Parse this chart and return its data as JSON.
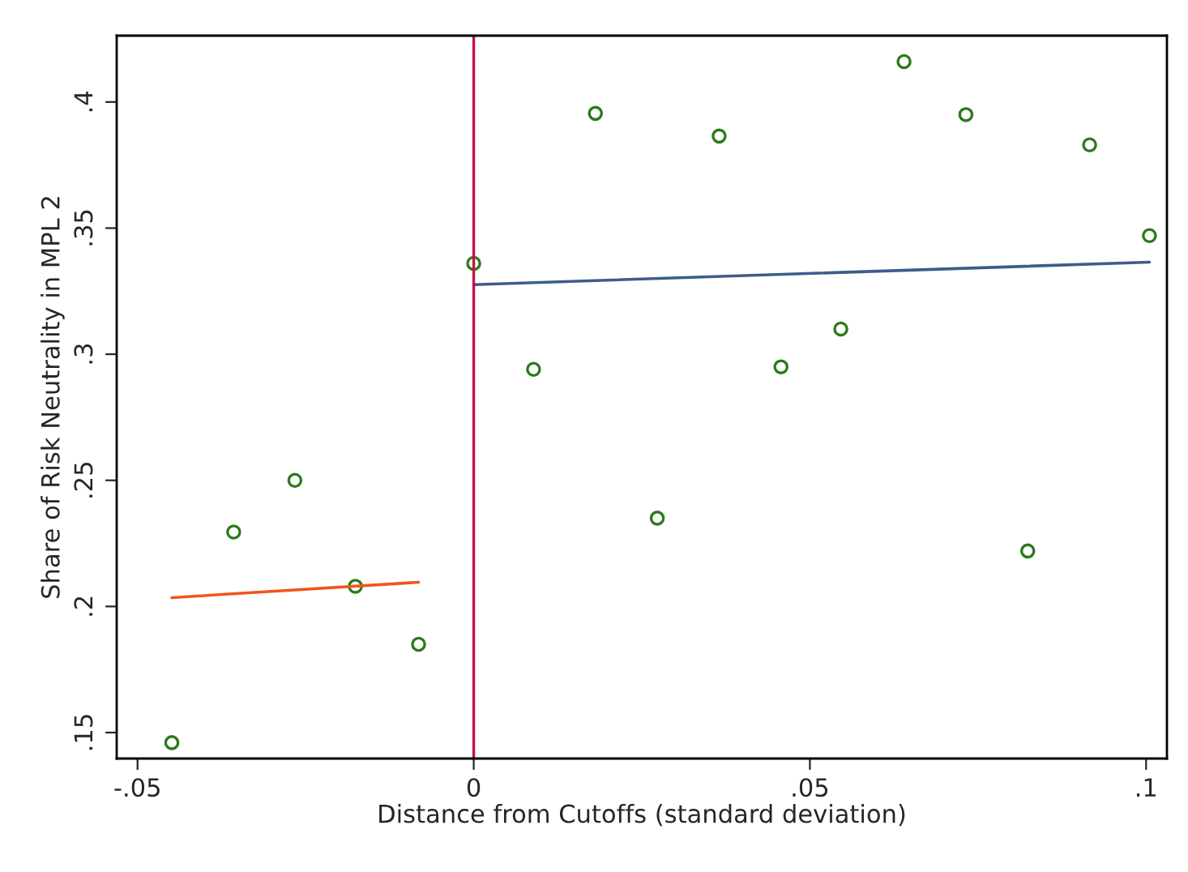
{
  "chart_data": {
    "type": "scatter",
    "xlabel": "Distance from Cutoffs (standard deviation)",
    "ylabel": "Share of Risk Neutrality in MPL 2",
    "series": [
      {
        "marker": "circle",
        "color": "#2a7a1a",
        "x": [
          -0.0449,
          -0.0357,
          -0.0266,
          -0.0176,
          -0.0082,
          0.0,
          0.0089,
          0.0181,
          0.0273,
          0.0365,
          0.0457,
          0.0546,
          0.064,
          0.0732,
          0.0824,
          0.0916,
          0.1005
        ],
        "values": [
          0.146,
          0.2295,
          0.25,
          0.208,
          0.185,
          0.336,
          0.294,
          0.3955,
          0.235,
          0.3865,
          0.295,
          0.31,
          0.416,
          0.395,
          0.222,
          0.383,
          0.347
        ]
      },
      {
        "type": "line",
        "color": "#f0561e",
        "x": [
          -0.0449,
          -0.0082
        ],
        "values": [
          0.2035,
          0.2096
        ]
      },
      {
        "type": "line",
        "color": "#3d5d8a",
        "x": [
          0.0,
          0.1005
        ],
        "values": [
          0.3276,
          0.3365
        ]
      }
    ],
    "ref_lines": [
      {
        "axis": "x",
        "value": 0,
        "color": "#c8104a"
      }
    ],
    "xlim": [
      -0.0531,
      0.1031
    ],
    "ylim": [
      0.1397,
      0.4263
    ],
    "xticks": [
      {
        "value": -0.05,
        "label": "-.05"
      },
      0,
      {
        "value": 0.05,
        "label": ".05"
      },
      {
        "value": 0.1,
        "label": ".1"
      }
    ],
    "yticks": [
      {
        "value": 0.15,
        "label": ".15"
      },
      {
        "value": 0.2,
        "label": ".2"
      },
      {
        "value": 0.25,
        "label": ".25"
      },
      {
        "value": 0.3,
        "label": ".3"
      },
      {
        "value": 0.35,
        "label": ".35"
      },
      {
        "value": 0.4,
        "label": ".4"
      }
    ],
    "grid": false,
    "legend": false
  }
}
